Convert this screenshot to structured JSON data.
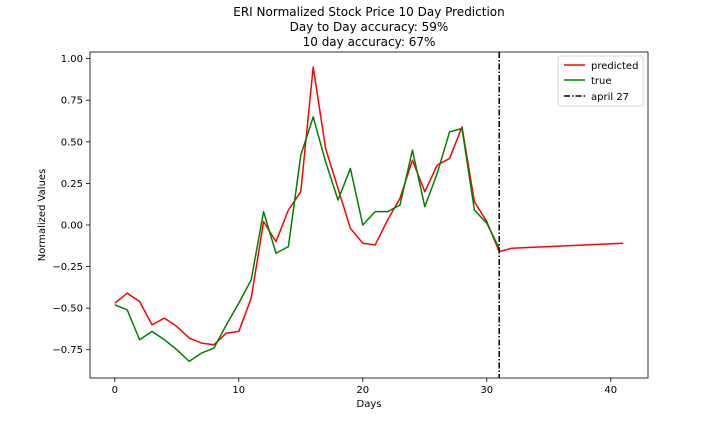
{
  "chart_data": {
    "type": "line",
    "title_lines": [
      "ERI Normalized Stock Price 10 Day Prediction",
      "Day to Day accuracy: 59%",
      "10 day accuracy: 67%"
    ],
    "xlabel": "Days",
    "ylabel": "Normalized Values",
    "xlim": [
      -2,
      43
    ],
    "ylim": [
      -0.92,
      1.04
    ],
    "xticks": [
      0,
      10,
      20,
      30,
      40
    ],
    "xtick_labels": [
      "0",
      "10",
      "20",
      "30",
      "40"
    ],
    "yticks": [
      -0.75,
      -0.5,
      -0.25,
      0.0,
      0.25,
      0.5,
      0.75,
      1.0
    ],
    "ytick_labels": [
      "−0.75",
      "−0.50",
      "−0.25",
      "0.00",
      "0.25",
      "0.50",
      "0.75",
      "1.00"
    ],
    "grid": false,
    "legend_position": "upper right",
    "series": [
      {
        "name": "predicted",
        "color": "#ff0000",
        "x": [
          0,
          1,
          2,
          3,
          4,
          5,
          6,
          7,
          8,
          9,
          10,
          11,
          12,
          13,
          14,
          15,
          16,
          17,
          18,
          19,
          20,
          21,
          22,
          23,
          24,
          25,
          26,
          27,
          28,
          29,
          30,
          31,
          32,
          41
        ],
        "y": [
          -0.47,
          -0.41,
          -0.46,
          -0.6,
          -0.56,
          -0.61,
          -0.68,
          -0.71,
          -0.72,
          -0.65,
          -0.64,
          -0.44,
          0.02,
          -0.1,
          0.09,
          0.2,
          0.95,
          0.46,
          0.22,
          -0.02,
          -0.11,
          -0.12,
          0.03,
          0.16,
          0.39,
          0.2,
          0.36,
          0.4,
          0.59,
          0.14,
          0.02,
          -0.16,
          -0.14,
          -0.11
        ]
      },
      {
        "name": "true",
        "color": "#008000",
        "x": [
          0,
          1,
          2,
          3,
          4,
          5,
          6,
          7,
          8,
          9,
          10,
          11,
          12,
          13,
          14,
          15,
          16,
          17,
          18,
          19,
          20,
          21,
          22,
          23,
          24,
          25,
          26,
          27,
          28,
          29,
          30,
          31
        ],
        "y": [
          -0.48,
          -0.51,
          -0.69,
          -0.64,
          -0.69,
          -0.75,
          -0.82,
          -0.77,
          -0.74,
          -0.6,
          -0.47,
          -0.33,
          0.08,
          -0.17,
          -0.13,
          0.42,
          0.65,
          0.38,
          0.15,
          0.34,
          0.0,
          0.08,
          0.08,
          0.12,
          0.45,
          0.11,
          0.31,
          0.56,
          0.58,
          0.09,
          0.01,
          -0.14
        ]
      }
    ],
    "vline": {
      "name": "april 27",
      "x": 31,
      "color": "#000000",
      "style": "dashdot"
    }
  }
}
